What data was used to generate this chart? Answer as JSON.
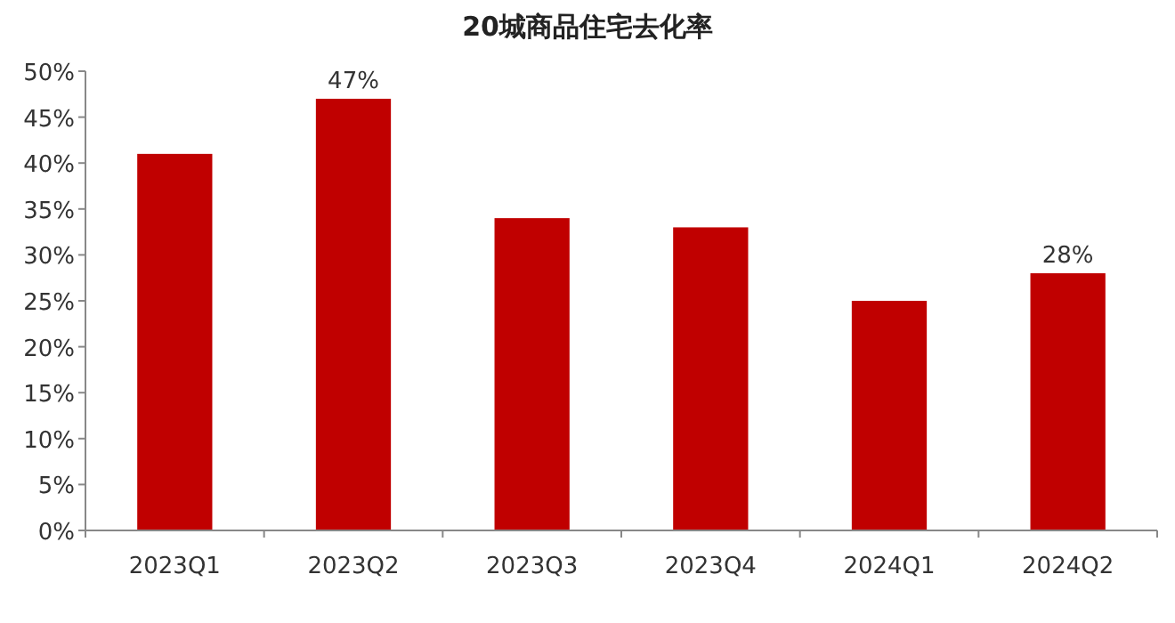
{
  "chart_data": {
    "type": "bar",
    "title": "20城商品住宅去化率",
    "categories": [
      "2023Q1",
      "2023Q2",
      "2023Q3",
      "2023Q4",
      "2024Q1",
      "2024Q2"
    ],
    "values": [
      41,
      47,
      34,
      33,
      25,
      28
    ],
    "value_labels": [
      null,
      "47%",
      null,
      null,
      null,
      "28%"
    ],
    "color": "#c00000",
    "ylim": [
      0,
      50
    ],
    "yticks": [
      {
        "value": 0,
        "label": "0%"
      },
      {
        "value": 5,
        "label": "5%"
      },
      {
        "value": 10,
        "label": "10%"
      },
      {
        "value": 15,
        "label": "15%"
      },
      {
        "value": 20,
        "label": "20%"
      },
      {
        "value": 25,
        "label": "25%"
      },
      {
        "value": 30,
        "label": "30%"
      },
      {
        "value": 35,
        "label": "35%"
      },
      {
        "value": 40,
        "label": "40%"
      },
      {
        "value": 45,
        "label": "45%"
      },
      {
        "value": 50,
        "label": "50%"
      }
    ]
  }
}
